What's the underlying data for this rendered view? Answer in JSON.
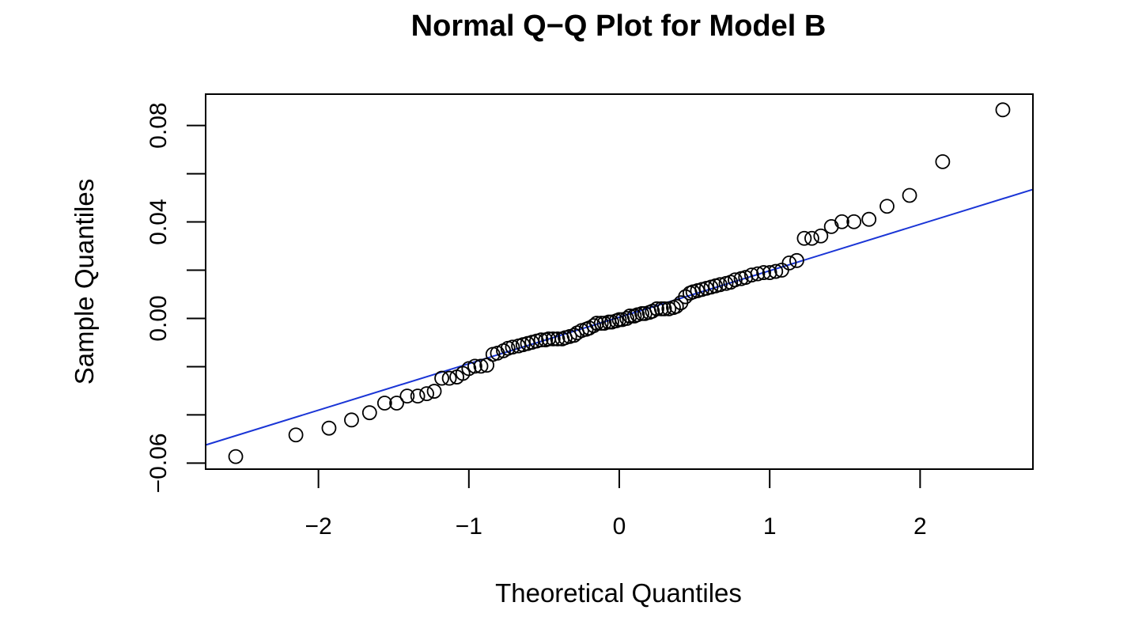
{
  "chart_data": {
    "type": "scatter",
    "title": "Normal Q−Q Plot for Model B",
    "xlabel": "Theoretical Quantiles",
    "ylabel": "Sample Quantiles",
    "xlim": [
      -2.75,
      2.75
    ],
    "ylim": [
      -0.0625,
      0.093
    ],
    "x_ticks": [
      -2,
      -1,
      0,
      1,
      2
    ],
    "x_tick_labels": [
      "−2",
      "−1",
      "0",
      "1",
      "2"
    ],
    "y_ticks": [
      -0.06,
      -0.04,
      -0.02,
      0.0,
      0.02,
      0.04,
      0.06,
      0.08
    ],
    "y_tick_labels": [
      "−0.06",
      "",
      "",
      "0.00",
      "",
      "0.04",
      "",
      "0.08"
    ],
    "grid": false,
    "colors": {
      "points": "#000000",
      "reference_line": "#1a35d6"
    },
    "reference_line": {
      "x": [
        -2.75,
        2.75
      ],
      "y": [
        -0.0525,
        0.0535
      ]
    },
    "points": [
      [
        -2.55,
        -0.0573
      ],
      [
        -2.15,
        -0.0483
      ],
      [
        -1.93,
        -0.0455
      ],
      [
        -1.78,
        -0.0421
      ],
      [
        -1.66,
        -0.0391
      ],
      [
        -1.56,
        -0.0351
      ],
      [
        -1.48,
        -0.0351
      ],
      [
        -1.41,
        -0.0322
      ],
      [
        -1.34,
        -0.0322
      ],
      [
        -1.28,
        -0.0312
      ],
      [
        -1.23,
        -0.0302
      ],
      [
        -1.18,
        -0.0248
      ],
      [
        -1.13,
        -0.0248
      ],
      [
        -1.08,
        -0.0243
      ],
      [
        -1.04,
        -0.0228
      ],
      [
        -1.0,
        -0.0208
      ],
      [
        -0.96,
        -0.0198
      ],
      [
        -0.92,
        -0.0198
      ],
      [
        -0.88,
        -0.0194
      ],
      [
        -0.84,
        -0.0149
      ],
      [
        -0.81,
        -0.0144
      ],
      [
        -0.77,
        -0.0134
      ],
      [
        -0.74,
        -0.0124
      ],
      [
        -0.71,
        -0.0119
      ],
      [
        -0.67,
        -0.0114
      ],
      [
        -0.64,
        -0.0109
      ],
      [
        -0.61,
        -0.0104
      ],
      [
        -0.58,
        -0.0099
      ],
      [
        -0.55,
        -0.0094
      ],
      [
        -0.52,
        -0.0089
      ],
      [
        -0.49,
        -0.0089
      ],
      [
        -0.47,
        -0.0085
      ],
      [
        -0.44,
        -0.0085
      ],
      [
        -0.41,
        -0.0085
      ],
      [
        -0.38,
        -0.0085
      ],
      [
        -0.36,
        -0.008
      ],
      [
        -0.33,
        -0.0075
      ],
      [
        -0.3,
        -0.007
      ],
      [
        -0.28,
        -0.006
      ],
      [
        -0.25,
        -0.005
      ],
      [
        -0.22,
        -0.0045
      ],
      [
        -0.2,
        -0.004
      ],
      [
        -0.17,
        -0.003
      ],
      [
        -0.15,
        -0.002
      ],
      [
        -0.12,
        -0.002
      ],
      [
        -0.1,
        -0.002
      ],
      [
        -0.07,
        -0.0015
      ],
      [
        -0.05,
        -0.0015
      ],
      [
        -0.02,
        -0.001
      ],
      [
        0.0,
        -0.0005
      ],
      [
        0.02,
        -0.0005
      ],
      [
        0.05,
        0.0
      ],
      [
        0.07,
        0.001
      ],
      [
        0.1,
        0.001
      ],
      [
        0.12,
        0.0015
      ],
      [
        0.15,
        0.002
      ],
      [
        0.17,
        0.002
      ],
      [
        0.2,
        0.0025
      ],
      [
        0.22,
        0.003
      ],
      [
        0.25,
        0.004
      ],
      [
        0.28,
        0.004
      ],
      [
        0.3,
        0.004
      ],
      [
        0.33,
        0.004
      ],
      [
        0.36,
        0.0045
      ],
      [
        0.38,
        0.005
      ],
      [
        0.41,
        0.0065
      ],
      [
        0.44,
        0.009
      ],
      [
        0.47,
        0.0105
      ],
      [
        0.49,
        0.011
      ],
      [
        0.52,
        0.0115
      ],
      [
        0.55,
        0.012
      ],
      [
        0.58,
        0.0125
      ],
      [
        0.61,
        0.013
      ],
      [
        0.64,
        0.0135
      ],
      [
        0.67,
        0.014
      ],
      [
        0.71,
        0.0145
      ],
      [
        0.74,
        0.015
      ],
      [
        0.77,
        0.016
      ],
      [
        0.81,
        0.0165
      ],
      [
        0.84,
        0.017
      ],
      [
        0.88,
        0.018
      ],
      [
        0.92,
        0.0185
      ],
      [
        0.96,
        0.019
      ],
      [
        1.0,
        0.019
      ],
      [
        1.04,
        0.0195
      ],
      [
        1.08,
        0.02
      ],
      [
        1.13,
        0.023
      ],
      [
        1.18,
        0.024
      ],
      [
        1.23,
        0.0332
      ],
      [
        1.28,
        0.0332
      ],
      [
        1.34,
        0.0342
      ],
      [
        1.41,
        0.0381
      ],
      [
        1.48,
        0.0401
      ],
      [
        1.56,
        0.0401
      ],
      [
        1.66,
        0.0411
      ],
      [
        1.78,
        0.0465
      ],
      [
        1.93,
        0.051
      ],
      [
        2.15,
        0.065
      ],
      [
        2.55,
        0.0865
      ]
    ]
  }
}
